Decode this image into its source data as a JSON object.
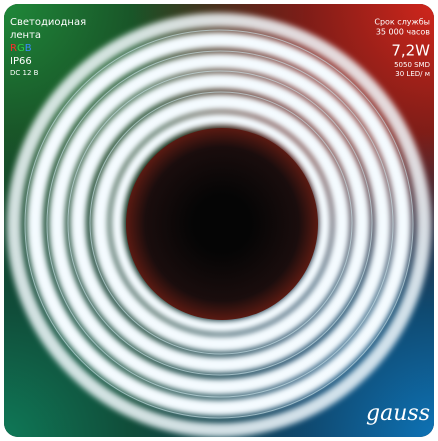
{
  "label": {
    "title_lines": [
      "Светодиодная",
      "лента"
    ],
    "color_mode": "RGB",
    "protection": "IP66",
    "voltage": "DC 12 В"
  },
  "specs": {
    "lifetime_label": "Срок службы",
    "lifetime_value": "35 000 часов",
    "power": "7,2W",
    "chip": "5050 SMD",
    "density": "30 LED/ м"
  },
  "brand": "gauss"
}
